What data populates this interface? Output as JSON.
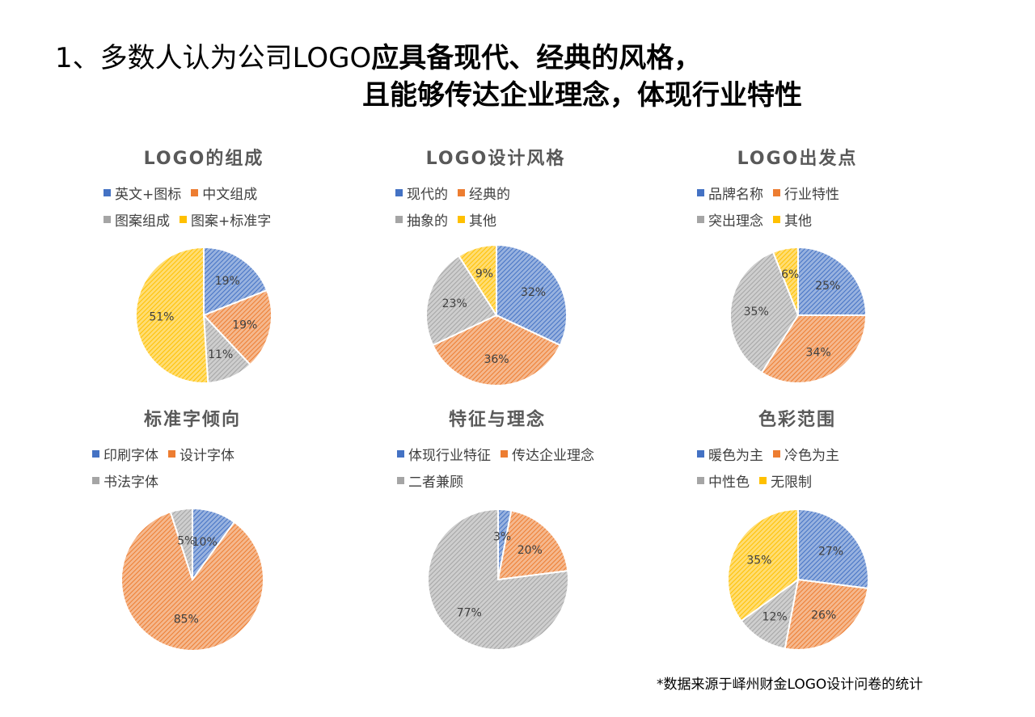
{
  "title": {
    "line1_prefix": "1、多数人认为公司LOGO",
    "line1_strong": "应具备现代、经典的风格，",
    "line2": "且能够传达企业理念，体现行业特性"
  },
  "footnote": "*数据来源于峄州财金LOGO设计问卷的统计",
  "colors": {
    "blue": "#4472c4",
    "orange": "#ed7d31",
    "gray": "#a5a5a5",
    "yellow": "#ffc000"
  },
  "chart_data": [
    {
      "type": "pie",
      "title": "LOGO的组成",
      "legend": [
        [
          "英文+图标",
          "中文组成"
        ],
        [
          "图案组成",
          "图案+标准字"
        ]
      ],
      "slices": [
        {
          "label": "英文+图标",
          "value": 19,
          "text": "19%",
          "color": "blue"
        },
        {
          "label": "中文组成",
          "value": 19,
          "text": "19%",
          "color": "orange"
        },
        {
          "label": "图案组成",
          "value": 11,
          "text": "11%",
          "color": "gray"
        },
        {
          "label": "图案+标准字",
          "value": 51,
          "text": "51%",
          "color": "yellow"
        }
      ]
    },
    {
      "type": "pie",
      "title": "LOGO设计风格",
      "legend": [
        [
          "现代的",
          "经典的"
        ],
        [
          "抽象的",
          "其他"
        ]
      ],
      "slices": [
        {
          "label": "现代的",
          "value": 32,
          "text": "32%",
          "color": "blue"
        },
        {
          "label": "经典的",
          "value": 36,
          "text": "36%",
          "color": "orange"
        },
        {
          "label": "抽象的",
          "value": 23,
          "text": "23%",
          "color": "gray"
        },
        {
          "label": "其他",
          "value": 9,
          "text": "9%",
          "color": "yellow"
        }
      ]
    },
    {
      "type": "pie",
      "title": "LOGO出发点",
      "legend": [
        [
          "品牌名称",
          "行业特性"
        ],
        [
          "突出理念",
          "其他"
        ]
      ],
      "slices": [
        {
          "label": "品牌名称",
          "value": 25,
          "text": "25%",
          "color": "blue"
        },
        {
          "label": "行业特性",
          "value": 34,
          "text": "34%",
          "color": "orange"
        },
        {
          "label": "突出理念",
          "value": 35,
          "text": "35%",
          "color": "gray"
        },
        {
          "label": "其他",
          "value": 6,
          "text": "6%",
          "color": "yellow"
        }
      ]
    },
    {
      "type": "pie",
      "title": "标准字倾向",
      "legend": [
        [
          "印刷字体",
          "设计字体"
        ],
        [
          "书法字体"
        ]
      ],
      "slices": [
        {
          "label": "印刷字体",
          "value": 10,
          "text": "10%",
          "color": "blue"
        },
        {
          "label": "设计字体",
          "value": 85,
          "text": "85%",
          "color": "orange"
        },
        {
          "label": "书法字体",
          "value": 5,
          "text": "5%",
          "color": "gray"
        }
      ]
    },
    {
      "type": "pie",
      "title": "特征与理念",
      "legend": [
        [
          "体现行业特征",
          "传达企业理念"
        ],
        [
          "二者兼顾"
        ]
      ],
      "slices": [
        {
          "label": "体现行业特征",
          "value": 3,
          "text": "3%",
          "color": "blue"
        },
        {
          "label": "传达企业理念",
          "value": 20,
          "text": "20%",
          "color": "orange"
        },
        {
          "label": "二者兼顾",
          "value": 77,
          "text": "77%",
          "color": "gray"
        }
      ]
    },
    {
      "type": "pie",
      "title": "色彩范围",
      "legend": [
        [
          "暖色为主",
          "冷色为主"
        ],
        [
          "中性色",
          "无限制"
        ]
      ],
      "slices": [
        {
          "label": "暖色为主",
          "value": 27,
          "text": "27%",
          "color": "blue"
        },
        {
          "label": "冷色为主",
          "value": 26,
          "text": "26%",
          "color": "orange"
        },
        {
          "label": "中性色",
          "value": 12,
          "text": "12%",
          "color": "gray"
        },
        {
          "label": "无限制",
          "value": 35,
          "text": "35%",
          "color": "yellow"
        }
      ]
    }
  ]
}
